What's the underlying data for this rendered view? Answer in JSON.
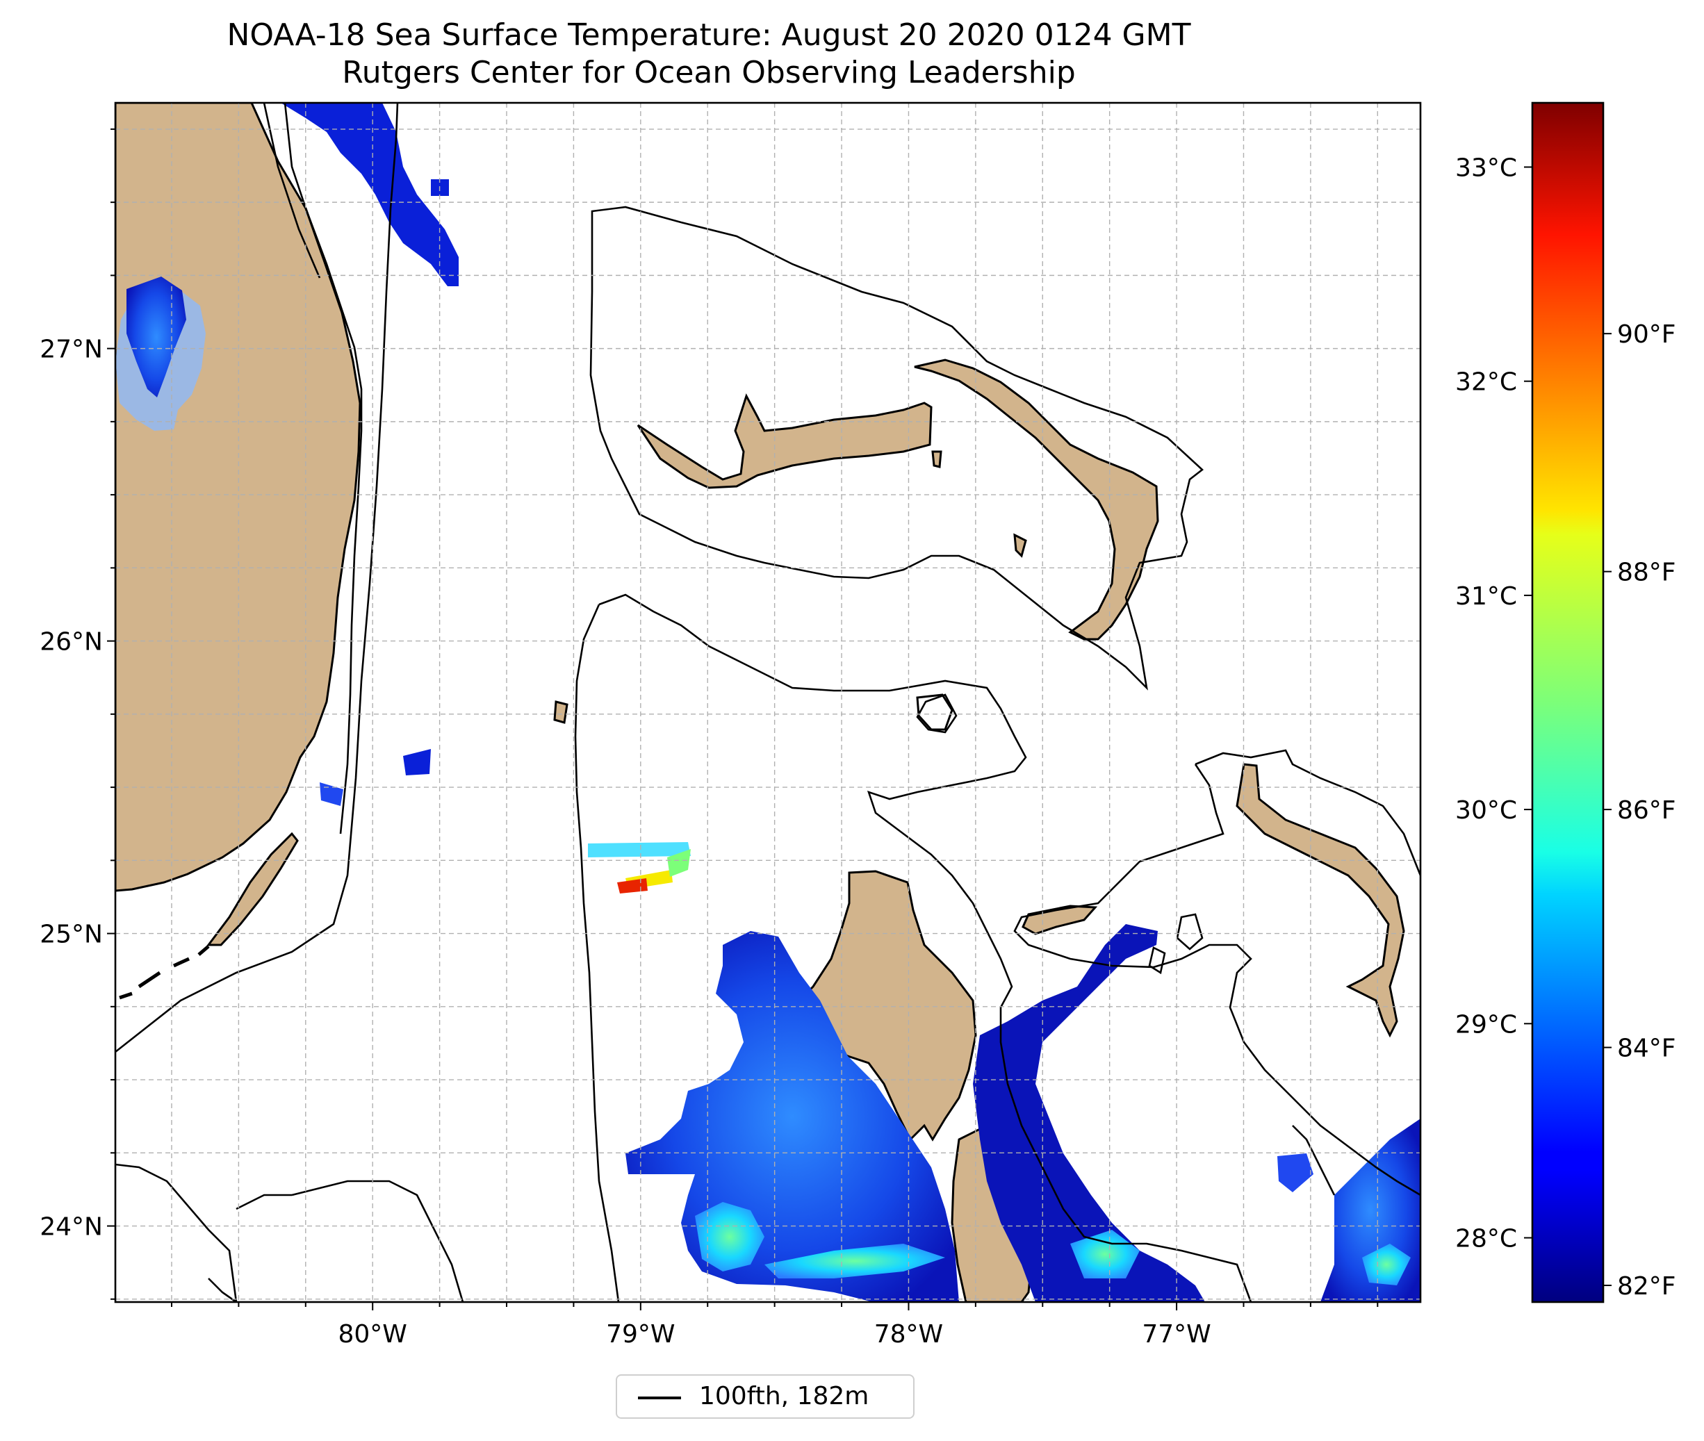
{
  "title": {
    "line1": "NOAA-18 Sea Surface Temperature: August 20 2020 0124 GMT",
    "line2": "Rutgers Center for Ocean Observing Leadership"
  },
  "map": {
    "lat_range": [
      23.74,
      27.84
    ],
    "lon_range": [
      -80.96,
      -76.09
    ],
    "lat_ticks": [
      {
        "value": 27,
        "label": "27°N"
      },
      {
        "value": 26,
        "label": "26°N"
      },
      {
        "value": 25,
        "label": "25°N"
      },
      {
        "value": 24,
        "label": "24°N"
      }
    ],
    "lon_ticks": [
      {
        "value": -80,
        "label": "80°W"
      },
      {
        "value": -79,
        "label": "79°W"
      },
      {
        "value": -78,
        "label": "78°W"
      },
      {
        "value": -77,
        "label": "77°W"
      }
    ],
    "gridlines": "dashed, every 0.25°",
    "land_color": "#d2b48c",
    "lake_color": "#9bb8e4",
    "isobath": {
      "label": "100fth, 182m",
      "color": "#000000"
    }
  },
  "colorbar": {
    "colormap": "jet",
    "range_c": [
      27.7,
      33.3
    ],
    "celsius_ticks": [
      {
        "value": 33,
        "label": "33°C"
      },
      {
        "value": 32,
        "label": "32°C"
      },
      {
        "value": 31,
        "label": "31°C"
      },
      {
        "value": 30,
        "label": "30°C"
      },
      {
        "value": 29,
        "label": "29°C"
      },
      {
        "value": 28,
        "label": "28°C"
      }
    ],
    "fahrenheit_ticks": [
      {
        "value": 90,
        "label": "90°F"
      },
      {
        "value": 88,
        "label": "88°F"
      },
      {
        "value": 86,
        "label": "86°F"
      },
      {
        "value": 84,
        "label": "84°F"
      },
      {
        "value": 82,
        "label": "82°F"
      }
    ]
  },
  "legend": {
    "label": "100fth, 182m"
  }
}
